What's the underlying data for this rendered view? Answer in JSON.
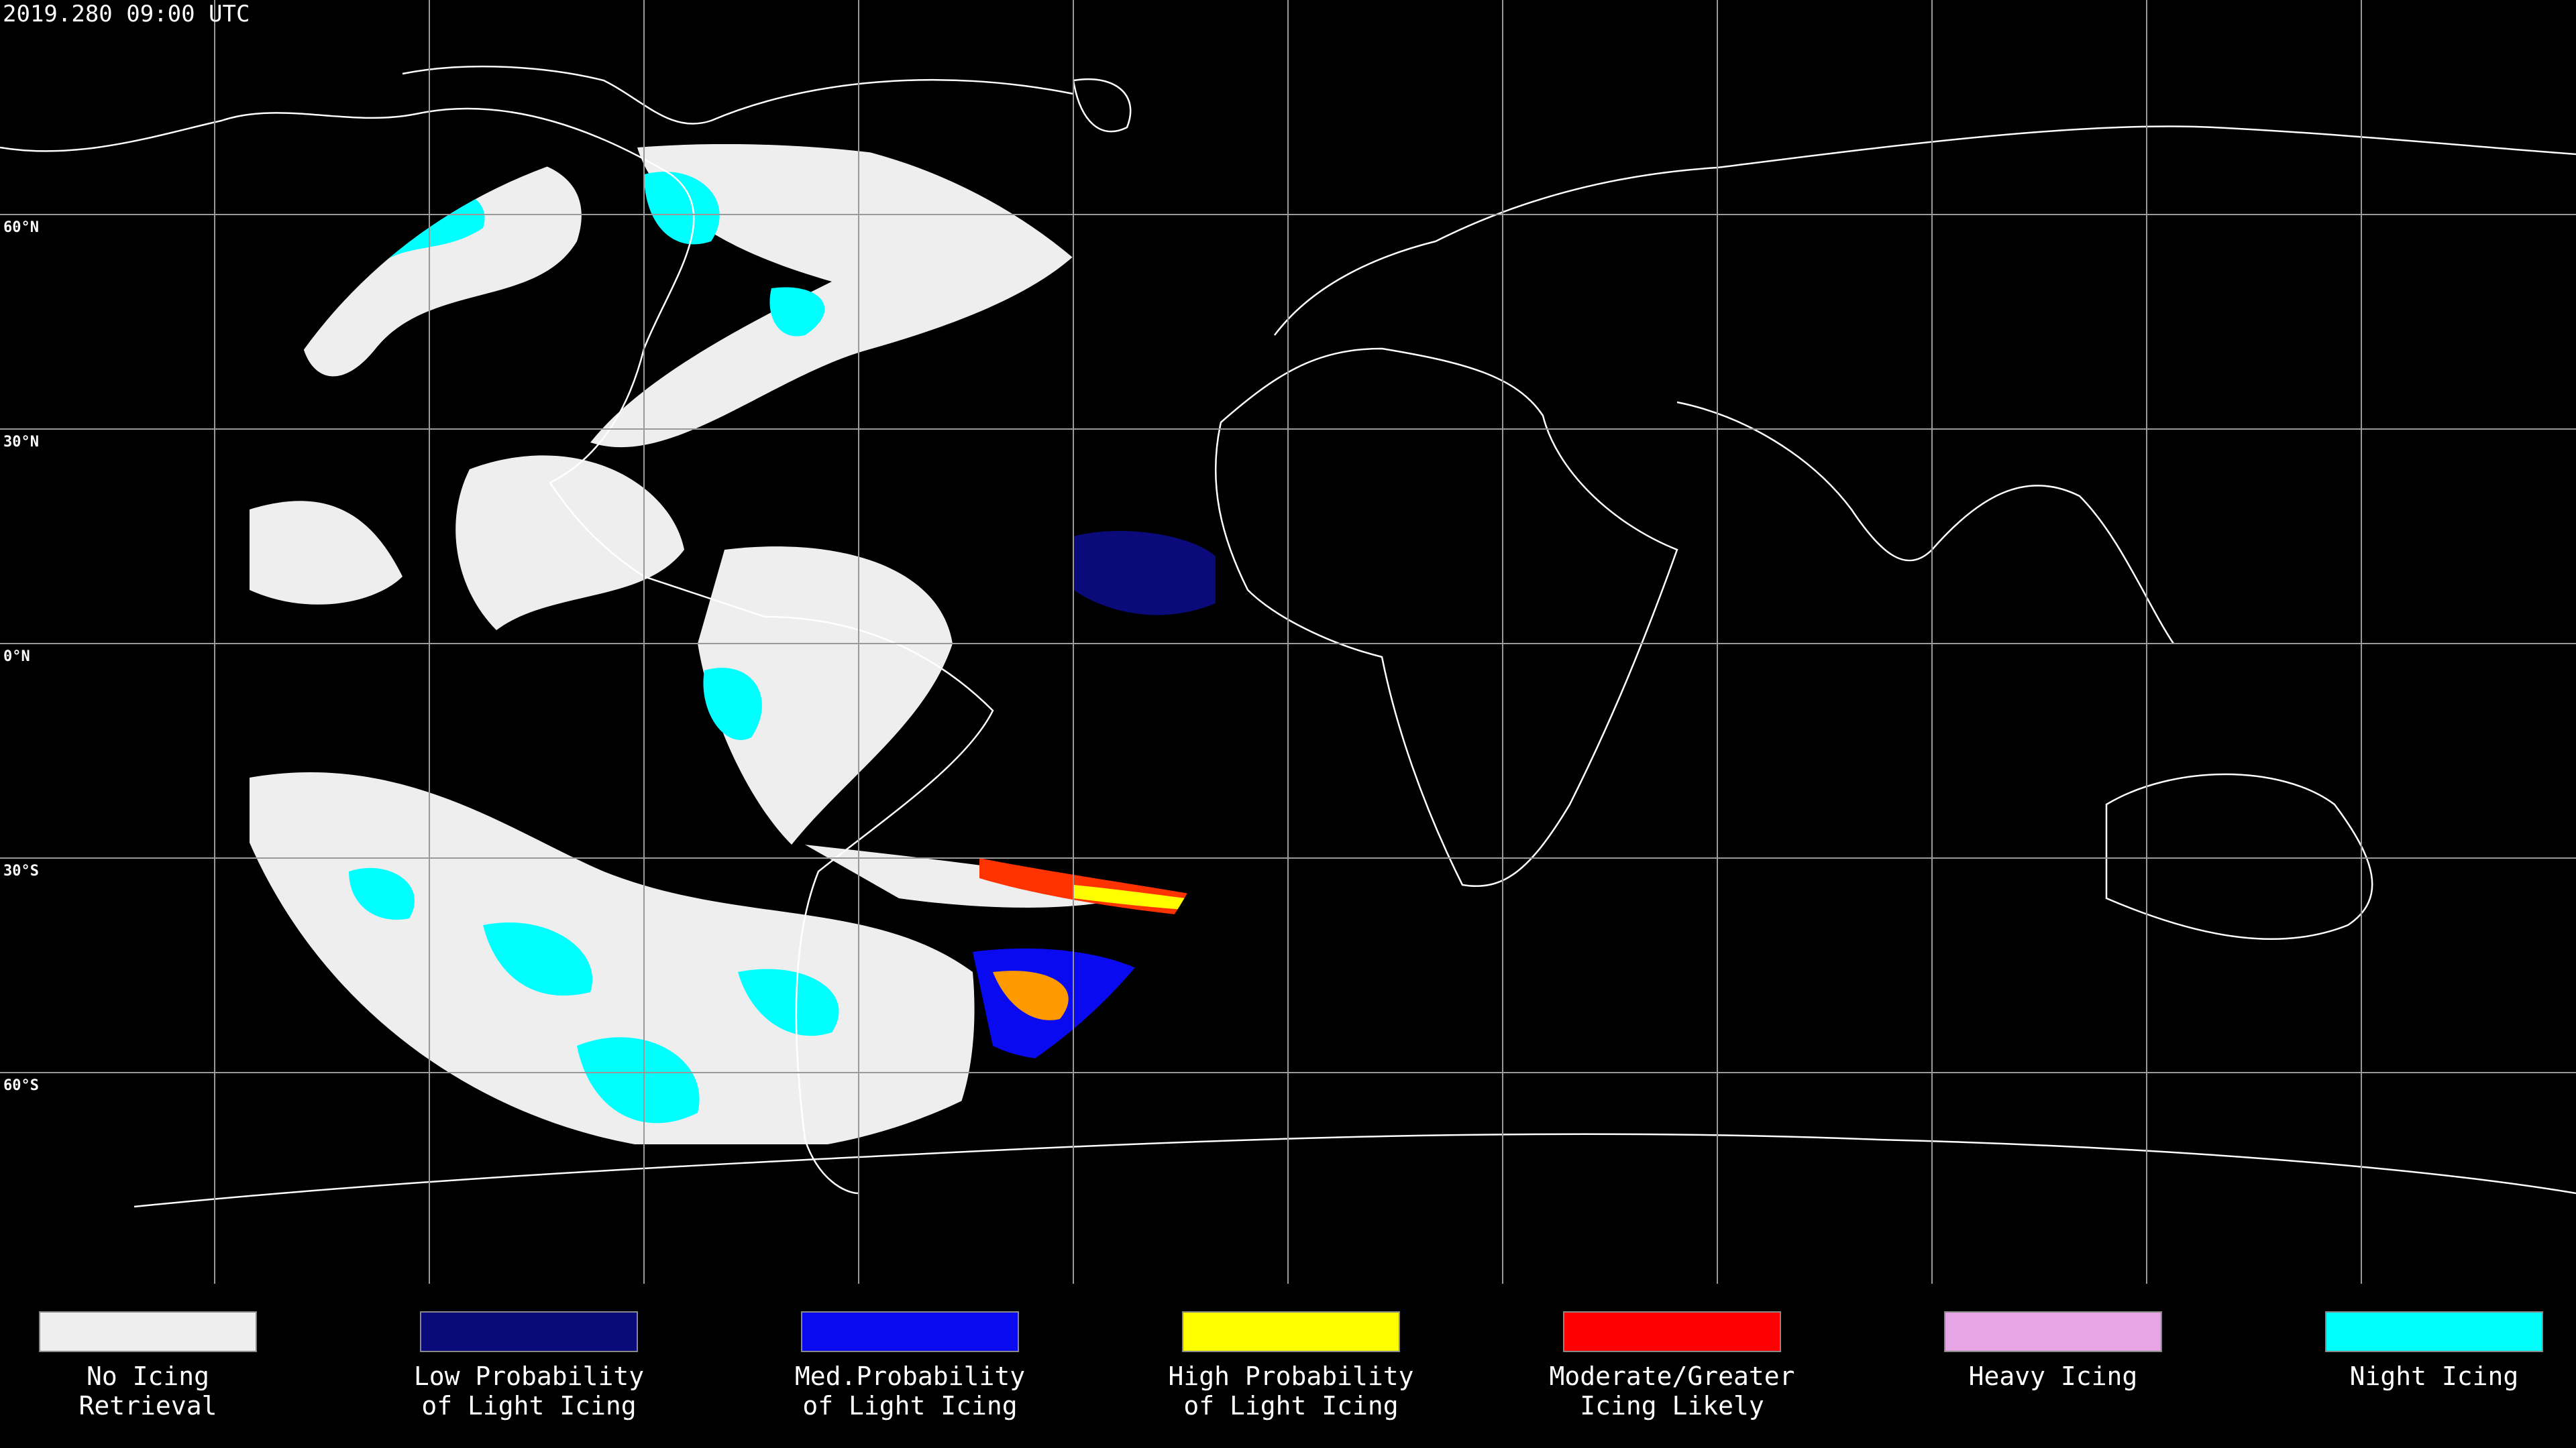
{
  "header": {
    "timestamp": "2019.280 09:00 UTC"
  },
  "grid": {
    "lat_labels": [
      "60°N",
      "30°N",
      "0°N",
      "30°S",
      "60°S"
    ]
  },
  "legend": [
    {
      "lines": [
        "No Icing",
        "Retrieval"
      ],
      "color": "#eeeeee"
    },
    {
      "lines": [
        "Low Probability",
        "of Light Icing"
      ],
      "color": "#0a0a7a"
    },
    {
      "lines": [
        "Med.Probability",
        "of Light Icing"
      ],
      "color": "#0a0af0"
    },
    {
      "lines": [
        "High Probability",
        "of Light Icing"
      ],
      "color": "#ffff00"
    },
    {
      "lines": [
        "Moderate/Greater",
        "Icing Likely"
      ],
      "color": "#ff0000"
    },
    {
      "lines": [
        "Heavy Icing"
      ],
      "color": "#e6a6e6"
    },
    {
      "lines": [
        "Night Icing"
      ],
      "color": "#00ffff"
    }
  ]
}
